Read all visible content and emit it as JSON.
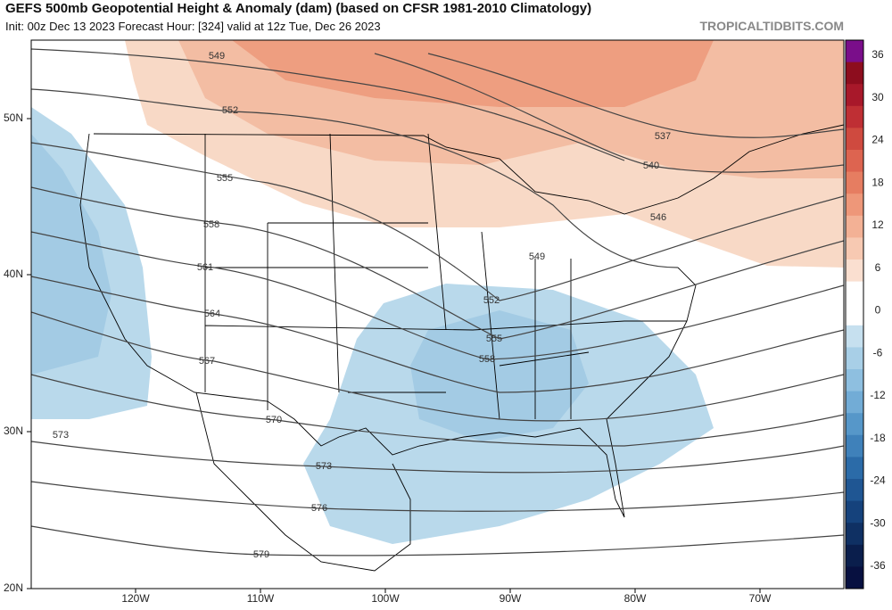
{
  "header": {
    "title": "GEFS 500mb Geopotential Height & Anomaly (dam) (based on CFSR 1981-2010 Climatology)",
    "subtitle": "Init: 00z Dec 13 2023   Forecast Hour: [324]   valid at 12z Tue, Dec 26 2023",
    "site": "TROPICALTIDBITS.COM"
  },
  "map": {
    "lat_labels": [
      "50N",
      "40N",
      "30N",
      "20N"
    ],
    "lon_labels": [
      "120W",
      "110W",
      "100W",
      "90W",
      "80W",
      "70W"
    ],
    "contour_labels": [
      "549",
      "552",
      "555",
      "558",
      "561",
      "564",
      "567",
      "570",
      "573",
      "573",
      "576",
      "579",
      "537",
      "540",
      "546",
      "549",
      "552",
      "555",
      "558"
    ]
  },
  "colorbar": {
    "labels": [
      "36",
      "30",
      "24",
      "18",
      "12",
      "6",
      "0",
      "-6",
      "-12",
      "-18",
      "-24",
      "-30",
      "-36"
    ]
  }
}
